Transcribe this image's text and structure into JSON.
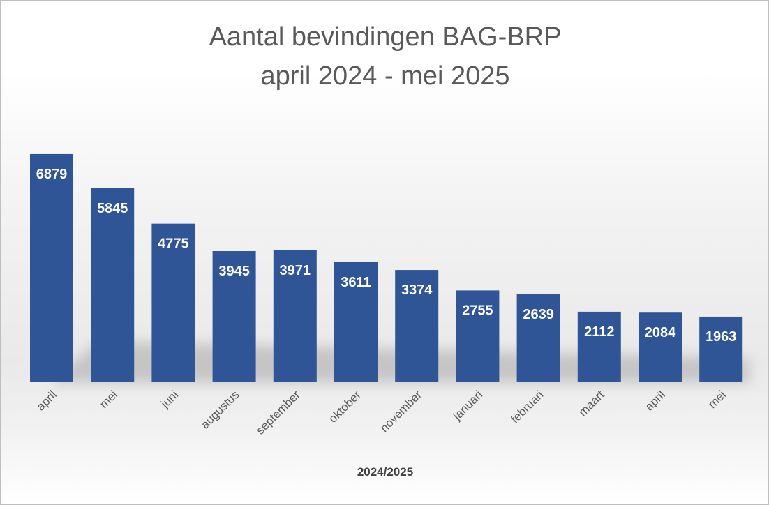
{
  "chart_data": {
    "type": "bar",
    "title": "Aantal bevindingen BAG-BRP",
    "subtitle": "april 2024 - mei 2025",
    "xlabel": "2024/2025",
    "ylabel": "",
    "categories": [
      "april",
      "mei",
      "juni",
      "augustus",
      "september",
      "oktober",
      "november",
      "januari",
      "februari",
      "maart",
      "april",
      "mei"
    ],
    "values": [
      6879,
      5845,
      4775,
      3945,
      3971,
      3611,
      3374,
      2755,
      2639,
      2112,
      2084,
      1963
    ],
    "data_labels": [
      "6879",
      "5845",
      "4775",
      "3945",
      "3971",
      "3611",
      "3374",
      "2755",
      "2639",
      "2112",
      "2084",
      "1963"
    ],
    "ylim": [
      0,
      7000
    ],
    "grid": false,
    "legend": "none",
    "bar_color": "#2f5597",
    "data_label_color": "#ffffff",
    "tick_label_color": "#595959"
  }
}
